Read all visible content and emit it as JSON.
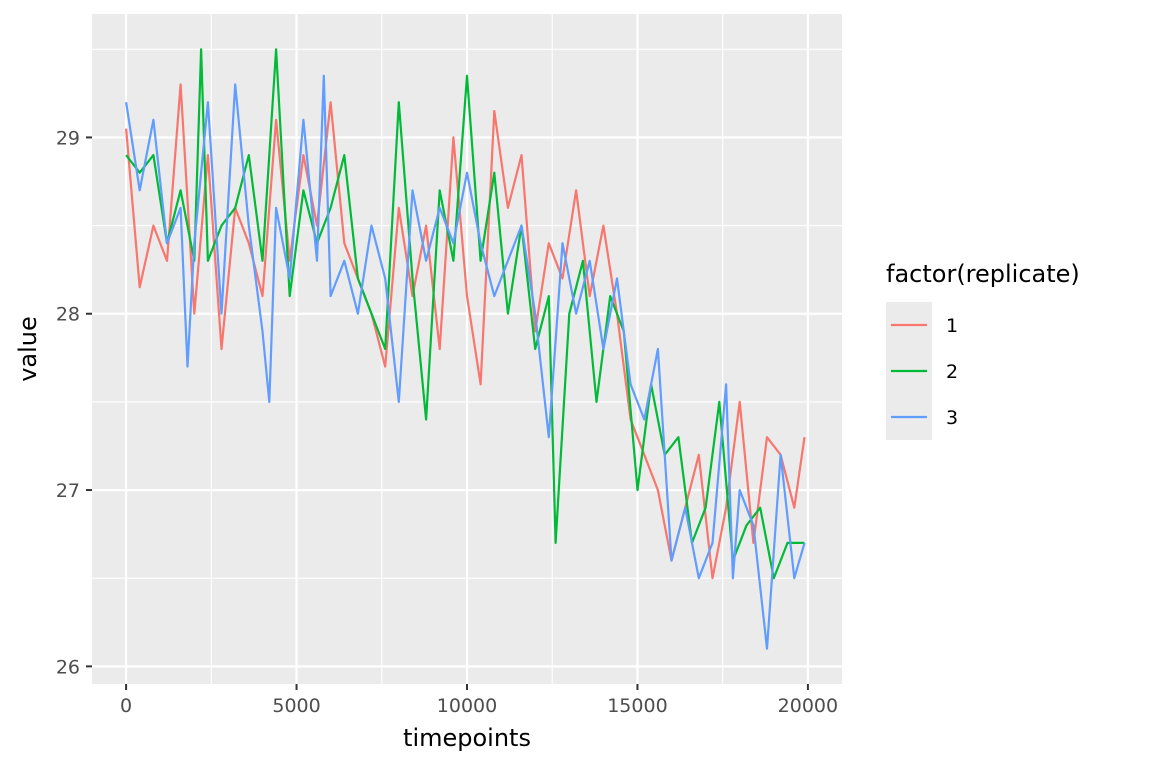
{
  "chart_data": {
    "type": "line",
    "title": "",
    "xlabel": "timepoints",
    "ylabel": "value",
    "xlim": [
      -1000,
      21000
    ],
    "ylim": [
      25.9,
      29.7
    ],
    "x_ticks": [
      0,
      5000,
      10000,
      15000,
      20000
    ],
    "x_tick_labels": [
      "0",
      "5000",
      "10000",
      "15000",
      "20000"
    ],
    "y_ticks": [
      26,
      27,
      28,
      29
    ],
    "y_tick_labels": [
      "26",
      "27",
      "28",
      "29"
    ],
    "grid": true,
    "panel_background": "#ebebeb",
    "legend": {
      "title": "factor(replicate)",
      "position": "right"
    },
    "series": [
      {
        "name": "1",
        "color": "#f8766d",
        "x": [
          0,
          400,
          800,
          1200,
          1600,
          2000,
          2400,
          2800,
          3200,
          3600,
          4000,
          4400,
          4800,
          5200,
          5600,
          6000,
          6400,
          6800,
          7200,
          7600,
          8000,
          8400,
          8800,
          9200,
          9600,
          10000,
          10400,
          10800,
          11200,
          11600,
          12000,
          12400,
          12800,
          13200,
          13600,
          14000,
          14400,
          14800,
          15200,
          15600,
          16000,
          16400,
          16800,
          17200,
          17600,
          18000,
          18400,
          18800,
          19200,
          19600,
          19900
        ],
        "values": [
          29.05,
          28.15,
          28.5,
          28.3,
          29.3,
          28.0,
          28.9,
          27.8,
          28.6,
          28.4,
          28.1,
          29.1,
          28.3,
          28.9,
          28.5,
          29.2,
          28.4,
          28.2,
          28.0,
          27.7,
          28.6,
          28.1,
          28.5,
          27.8,
          29.0,
          28.1,
          27.6,
          29.15,
          28.6,
          28.9,
          27.9,
          28.4,
          28.2,
          28.7,
          28.1,
          28.5,
          28.0,
          27.4,
          27.2,
          27.0,
          26.6,
          26.9,
          27.2,
          26.5,
          26.9,
          27.5,
          26.7,
          27.3,
          27.2,
          26.9,
          27.3
        ]
      },
      {
        "name": "2",
        "color": "#00ba38",
        "x": [
          0,
          400,
          800,
          1200,
          1600,
          2000,
          2200,
          2400,
          2800,
          3200,
          3600,
          4000,
          4400,
          4800,
          5200,
          5600,
          6000,
          6400,
          6800,
          7200,
          7600,
          8000,
          8400,
          8800,
          9200,
          9600,
          10000,
          10400,
          10800,
          11200,
          11600,
          12000,
          12400,
          12600,
          13000,
          13400,
          13800,
          14200,
          14600,
          15000,
          15400,
          15800,
          16200,
          16600,
          17000,
          17400,
          17800,
          18200,
          18600,
          19000,
          19400,
          19900
        ],
        "values": [
          28.9,
          28.8,
          28.9,
          28.4,
          28.7,
          28.3,
          29.5,
          28.3,
          28.5,
          28.6,
          28.9,
          28.3,
          29.5,
          28.1,
          28.7,
          28.4,
          28.6,
          28.9,
          28.2,
          28.0,
          27.8,
          29.2,
          28.2,
          27.4,
          28.7,
          28.3,
          29.35,
          28.3,
          28.8,
          28.0,
          28.5,
          27.8,
          28.1,
          26.7,
          28.0,
          28.3,
          27.5,
          28.1,
          27.9,
          27.0,
          27.6,
          27.2,
          27.3,
          26.7,
          26.9,
          27.5,
          26.6,
          26.8,
          26.9,
          26.5,
          26.7,
          26.7
        ]
      },
      {
        "name": "3",
        "color": "#619cff",
        "x": [
          0,
          400,
          800,
          1200,
          1600,
          1800,
          2000,
          2400,
          2800,
          3200,
          3600,
          4000,
          4200,
          4400,
          4800,
          5200,
          5600,
          5800,
          6000,
          6400,
          6800,
          7200,
          7600,
          8000,
          8400,
          8800,
          9200,
          9600,
          10000,
          10400,
          10800,
          11200,
          11600,
          12000,
          12400,
          12800,
          13200,
          13600,
          14000,
          14400,
          14800,
          15200,
          15600,
          16000,
          16400,
          16800,
          17200,
          17600,
          17800,
          18000,
          18400,
          18800,
          19200,
          19600,
          19900
        ],
        "values": [
          29.2,
          28.7,
          29.1,
          28.4,
          28.6,
          27.7,
          28.4,
          29.2,
          28.0,
          29.3,
          28.5,
          27.9,
          27.5,
          28.6,
          28.2,
          29.1,
          28.3,
          29.35,
          28.1,
          28.3,
          28.0,
          28.5,
          28.2,
          27.5,
          28.7,
          28.3,
          28.6,
          28.4,
          28.8,
          28.4,
          28.1,
          28.3,
          28.5,
          28.0,
          27.3,
          28.4,
          28.0,
          28.3,
          27.8,
          28.2,
          27.6,
          27.4,
          27.8,
          26.6,
          26.9,
          26.5,
          26.7,
          27.6,
          26.5,
          27.0,
          26.8,
          26.1,
          27.2,
          26.5,
          26.7
        ]
      }
    ]
  }
}
